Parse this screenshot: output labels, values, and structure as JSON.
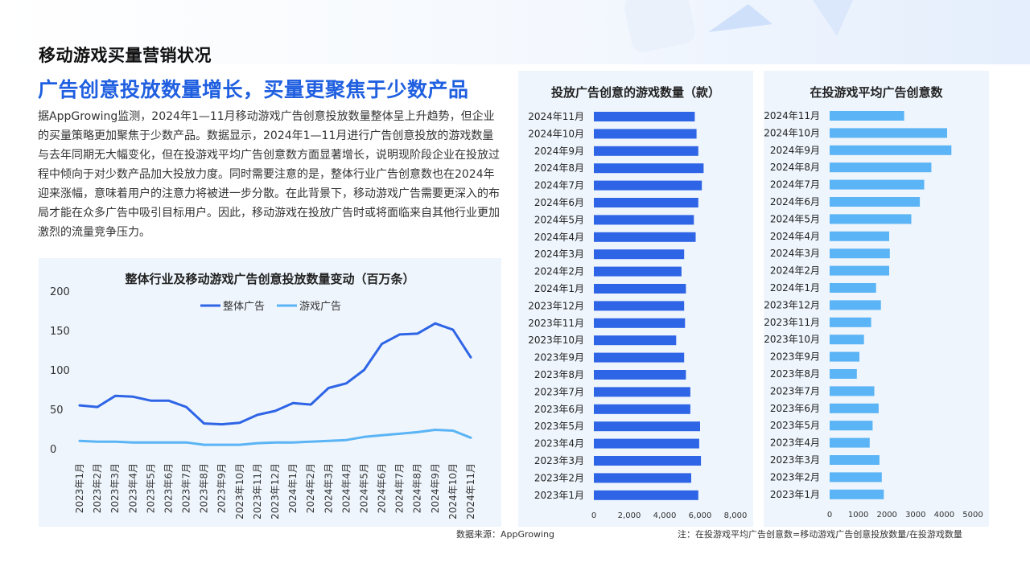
{
  "page": {
    "title": "移动游戏买量营销状况",
    "headline": "广告创意投放数量增长，买量更聚焦于少数产品",
    "body": "据AppGrowing监测，2024年1—11月移动游戏广告创意投放数量整体呈上升趋势，但企业的买量策略更加聚焦于少数产品。数据显示，2024年1—11月进行广告创意投放的游戏数量与去年同期无大幅变化，但在投游戏平均广告创意数方面显著增长，说明现阶段企业在投放过程中倾向于对少数产品加大投放力度。同时需要注意的是，整体行业广告创意数也在2024年迎来涨幅，意味着用户的注意力将被进一步分散。在此背景下，移动游戏广告需要更深入的布局才能在众多广告中吸引目标用户。因此，移动游戏在投放广告时或将面临来自其他行业更加激烈的流量竞争压力。",
    "source": "数据来源：AppGrowing",
    "note": "注：在投游戏平均广告创意数=移动游戏广告创意投放数量/在投游戏数量"
  },
  "colors": {
    "dark_blue": "#2e64e6",
    "light_blue": "#5ab4f5",
    "panel_bg": "#eef5fc"
  },
  "chart_data": [
    {
      "type": "line",
      "title": "整体行业及移动游戏广告创意投放数量变动（百万条）",
      "categories": [
        "2023年1月",
        "2023年2月",
        "2023年3月",
        "2023年4月",
        "2023年5月",
        "2023年6月",
        "2023年7月",
        "2023年8月",
        "2023年9月",
        "2023年10月",
        "2023年11月",
        "2023年12月",
        "2024年1月",
        "2024年2月",
        "2024年3月",
        "2024年4月",
        "2024年5月",
        "2024年6月",
        "2024年7月",
        "2024年8月",
        "2024年9月",
        "2024年10月",
        "2024年11月"
      ],
      "series": [
        {
          "name": "整体广告",
          "color": "#2e64e6",
          "values": [
            55,
            53,
            67,
            66,
            61,
            61,
            53,
            32,
            31,
            33,
            43,
            48,
            58,
            56,
            77,
            83,
            100,
            133,
            145,
            146,
            159,
            151,
            116
          ]
        },
        {
          "name": "游戏广告",
          "color": "#5ab4f5",
          "values": [
            10,
            9,
            9,
            8,
            8,
            8,
            8,
            5,
            5,
            5,
            7,
            8,
            8,
            9,
            10,
            11,
            15,
            17,
            19,
            21,
            24,
            23,
            14
          ]
        }
      ],
      "ylim": [
        0,
        200
      ],
      "yticks": [
        "0",
        "50",
        "100",
        "150",
        "200"
      ],
      "legend": "top-center",
      "grid": false
    },
    {
      "type": "bar",
      "orientation": "horizontal",
      "title": "投放广告创意的游戏数量（款）",
      "color": "#2e64e6",
      "categories": [
        "2024年11月",
        "2024年10月",
        "2024年9月",
        "2024年8月",
        "2024年7月",
        "2024年6月",
        "2024年5月",
        "2024年4月",
        "2024年3月",
        "2024年2月",
        "2024年1月",
        "2023年12月",
        "2023年11月",
        "2023年10月",
        "2023年9月",
        "2023年8月",
        "2023年7月",
        "2023年6月",
        "2023年5月",
        "2023年4月",
        "2023年3月",
        "2023年2月",
        "2023年1月"
      ],
      "values": [
        5700,
        5800,
        5900,
        6200,
        6100,
        5900,
        5650,
        5750,
        5100,
        4950,
        5200,
        5100,
        5150,
        4650,
        5100,
        5200,
        5450,
        5450,
        6000,
        5950,
        6050,
        5500,
        5900
      ],
      "xlim": [
        0,
        8000
      ],
      "xticks": [
        "0",
        "2,000",
        "4,000",
        "6,000",
        "8,000"
      ],
      "grid": false
    },
    {
      "type": "bar",
      "orientation": "horizontal",
      "title": "在投游戏平均广告创意数",
      "color": "#5ab4f5",
      "categories": [
        "2024年11月",
        "2024年10月",
        "2024年9月",
        "2024年8月",
        "2024年7月",
        "2024年6月",
        "2024年5月",
        "2024年4月",
        "2024年3月",
        "2024年2月",
        "2024年1月",
        "2023年12月",
        "2023年11月",
        "2023年10月",
        "2023年9月",
        "2023年8月",
        "2023年7月",
        "2023年6月",
        "2023年5月",
        "2023年4月",
        "2023年3月",
        "2023年2月",
        "2023年1月"
      ],
      "values": [
        2600,
        4100,
        4250,
        3550,
        3300,
        3150,
        2850,
        2080,
        2100,
        2080,
        1620,
        1790,
        1450,
        1200,
        1040,
        950,
        1560,
        1710,
        1500,
        1400,
        1740,
        1820,
        1890
      ],
      "xlim": [
        0,
        5000
      ],
      "xticks": [
        "0",
        "1000",
        "2000",
        "3000",
        "4000",
        "5000"
      ],
      "grid": false
    }
  ]
}
